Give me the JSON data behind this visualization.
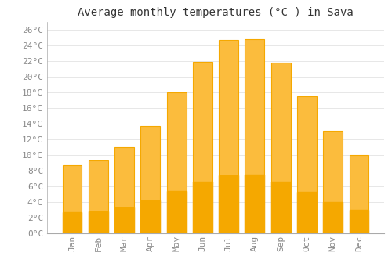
{
  "title": "Average monthly temperatures (°C ) in Sava",
  "months": [
    "Jan",
    "Feb",
    "Mar",
    "Apr",
    "May",
    "Jun",
    "Jul",
    "Aug",
    "Sep",
    "Oct",
    "Nov",
    "Dec"
  ],
  "temperatures": [
    8.7,
    9.3,
    11.0,
    13.7,
    18.0,
    21.9,
    24.7,
    24.8,
    21.8,
    17.5,
    13.1,
    10.0
  ],
  "bar_color_top": "#FBBC3D",
  "bar_color_bottom": "#F5A800",
  "background_color": "#FFFFFF",
  "grid_color": "#DDDDDD",
  "text_color": "#888888",
  "title_fontsize": 10,
  "tick_fontsize": 8,
  "ylim": [
    0,
    27
  ],
  "yticks": [
    0,
    2,
    4,
    6,
    8,
    10,
    12,
    14,
    16,
    18,
    20,
    22,
    24,
    26
  ],
  "bar_width": 0.75
}
